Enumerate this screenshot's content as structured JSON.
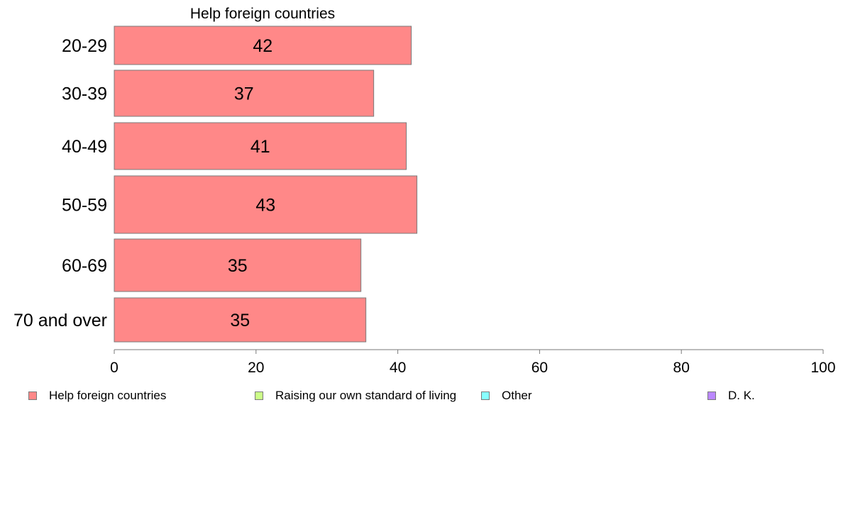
{
  "chart_data": {
    "type": "bar",
    "orientation": "horizontal",
    "title": "Help foreign countries",
    "categories": [
      "20-29",
      "30-39",
      "40-49",
      "50-59",
      "60-69",
      "70 and over"
    ],
    "series": [
      {
        "name": "Help foreign countries",
        "values": [
          42,
          37,
          41,
          43,
          35,
          35
        ],
        "exact": [
          41.9,
          36.6,
          41.2,
          42.7,
          34.8,
          35.5
        ]
      }
    ],
    "xlim": [
      0,
      100
    ],
    "xticks": [
      0,
      20,
      40,
      60,
      80,
      100
    ],
    "grid": false,
    "legend_position": "bottom",
    "legend": [
      {
        "label": "Help foreign countries",
        "color": "#ff8888"
      },
      {
        "label": "Raising our own standard of living",
        "color": "#ccff88"
      },
      {
        "label": "Other",
        "color": "#88ffff"
      },
      {
        "label": "D. K.",
        "color": "#bb88ff"
      }
    ],
    "bar_color": "#ff8888"
  }
}
